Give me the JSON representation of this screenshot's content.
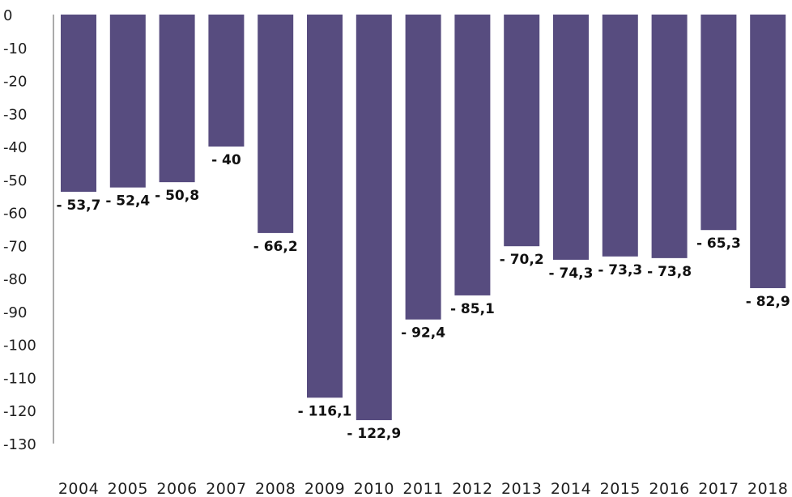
{
  "chart_data": {
    "type": "bar",
    "title": "",
    "xlabel": "",
    "ylabel": "",
    "categories": [
      "2004",
      "2005",
      "2006",
      "2007",
      "2008",
      "2009",
      "2010",
      "2011",
      "2012",
      "2013",
      "2014",
      "2015",
      "2016",
      "2017",
      "2018"
    ],
    "values": [
      -53.7,
      -52.4,
      -50.8,
      -40,
      -66.2,
      -116.1,
      -122.9,
      -92.4,
      -85.1,
      -70.2,
      -74.3,
      -73.3,
      -73.8,
      -65.3,
      -82.9
    ],
    "data_labels": [
      "- 53,7",
      "- 52,4",
      "- 50,8",
      "- 40",
      "- 66,2",
      "- 116,1",
      "- 122,9",
      "- 92,4",
      "- 85,1",
      "- 70,2",
      "- 74,3",
      "- 73,3",
      "- 73,8",
      "- 65,3",
      "- 82,9"
    ],
    "ylim": [
      -130,
      0
    ],
    "yticks": [
      0,
      -10,
      -20,
      -30,
      -40,
      -50,
      -60,
      -70,
      -80,
      -90,
      -100,
      -110,
      -120,
      -130
    ],
    "ytick_labels": [
      "0",
      "-10",
      "-20",
      "-30",
      "-40",
      "-50",
      "-60",
      "-70",
      "-80",
      "-90",
      "-100",
      "-110",
      "-120",
      "-130"
    ],
    "grid": false,
    "legend": "none",
    "bar_color": "#574c7f"
  }
}
